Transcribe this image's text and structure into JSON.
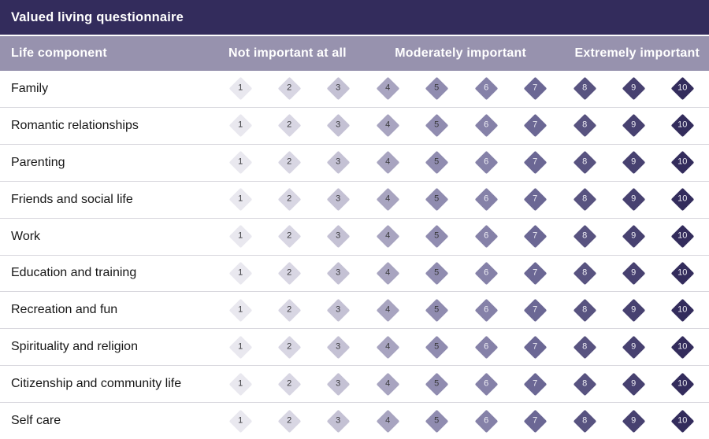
{
  "title": "Valued living questionnaire",
  "columns": {
    "life_component": "Life component",
    "scale_headers": [
      "Not important at all",
      "Moderately important",
      "Extremely important"
    ]
  },
  "scale": {
    "values": [
      1,
      2,
      3,
      4,
      5,
      6,
      7,
      8,
      9,
      10
    ],
    "colors": [
      "#e9e8ef",
      "#d8d6e3",
      "#c4c1d4",
      "#a8a4c0",
      "#908cb0",
      "#8581a8",
      "#6b6794",
      "#585380",
      "#474170",
      "#332c5c"
    ],
    "number_colors": [
      "#39393c",
      "#39393c",
      "#39393c",
      "#39393c",
      "#39393c",
      "#eeedf4",
      "#eeedf4",
      "#eeedf4",
      "#eeedf4",
      "#eeedf4"
    ]
  },
  "rows": [
    "Family",
    "Romantic relationships",
    "Parenting",
    "Friends and social life",
    "Work",
    "Education and training",
    "Recreation and fun",
    "Spirituality and religion",
    "Citizenship and community life",
    "Self care"
  ],
  "colors": {
    "header_bg": "#332c5c",
    "colheader_bg": "#9792ae",
    "header_text": "#ffffff",
    "row_text": "#161616",
    "row_divider": "#d8d7dd"
  }
}
